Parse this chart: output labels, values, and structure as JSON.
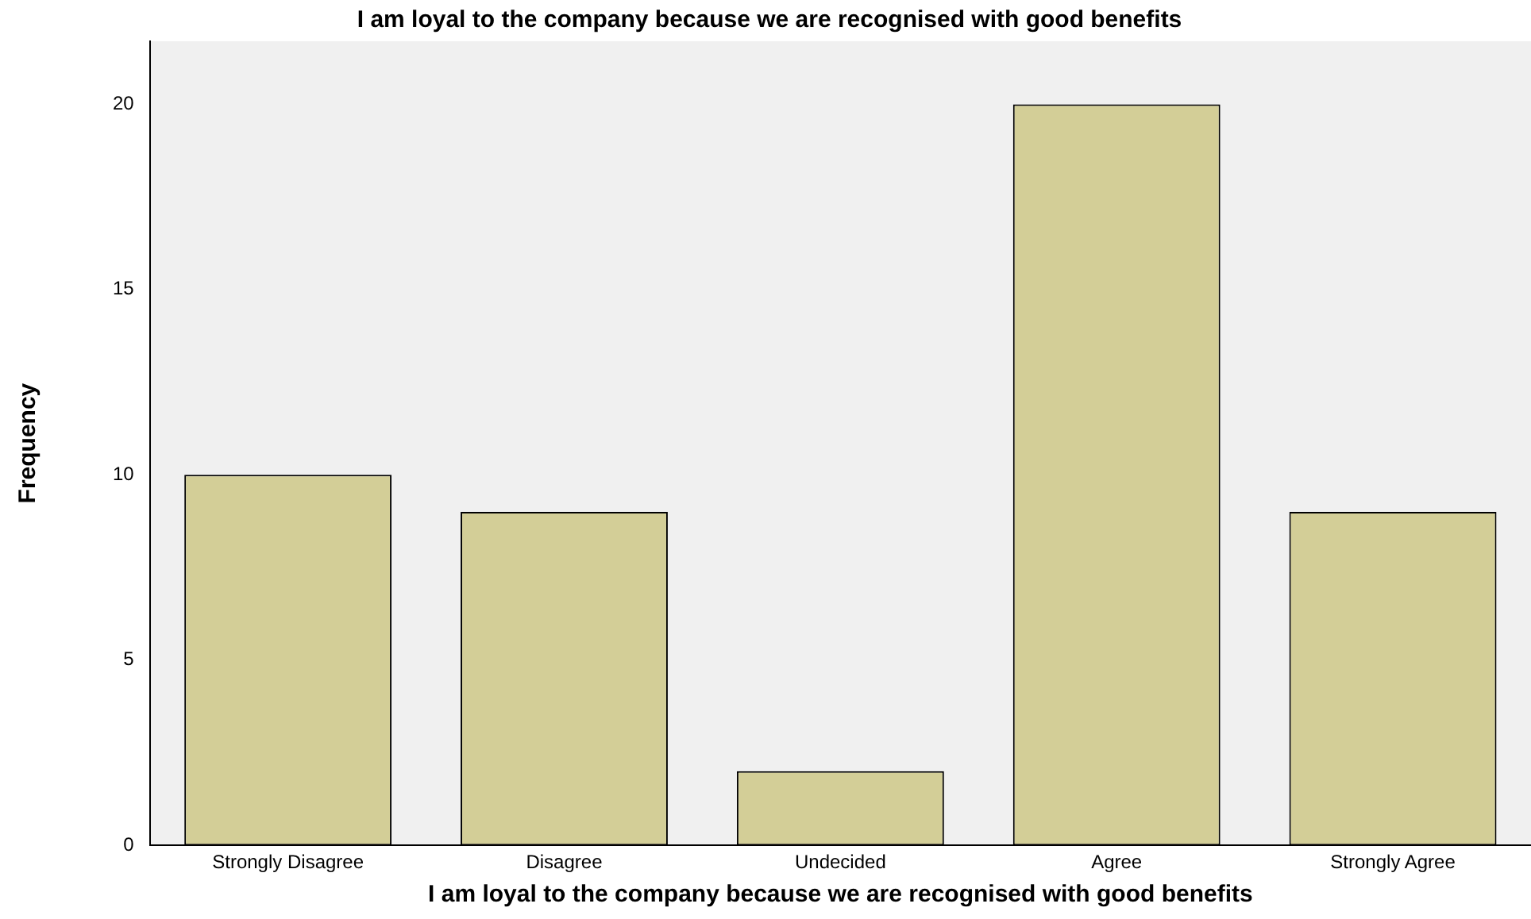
{
  "chart_data": {
    "type": "bar",
    "title": "I am loyal to the company because we are recognised with good benefits",
    "xlabel": "I am loyal to the company because we are recognised with good benefits",
    "ylabel": "Frequency",
    "categories": [
      "Strongly Disagree",
      "Disagree",
      "Undecided",
      "Agree",
      "Strongly Agree"
    ],
    "values": [
      10,
      9,
      2,
      20,
      9
    ],
    "color": "#d3ce97",
    "ylim": [
      0,
      21.7
    ],
    "yticks": [
      0,
      5,
      10,
      15,
      20
    ],
    "grid": false,
    "legend": false
  }
}
